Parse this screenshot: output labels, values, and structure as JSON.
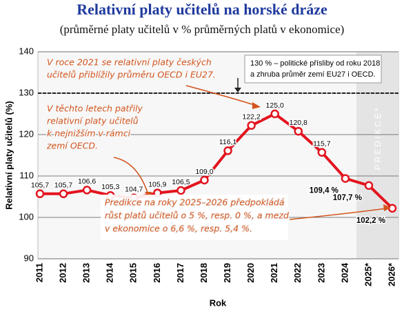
{
  "chart_data": {
    "type": "line",
    "title": "Relativní platy učitelů na horské dráze",
    "subtitle": "(průměrné platy učitelů v % průměrných platů v ekonomice)",
    "x_label": "Rok",
    "y_label": "Relativní platy učitelů (%)",
    "categories": [
      "2011",
      "2012",
      "2013",
      "2014",
      "2015",
      "2016",
      "2017",
      "2018",
      "2019",
      "2020",
      "2021",
      "2022",
      "2023",
      "2024",
      "2025*",
      "2026*"
    ],
    "values": [
      105.7,
      105.7,
      106.6,
      105.3,
      104.7,
      105.9,
      106.5,
      109.0,
      116.1,
      122.2,
      125.0,
      120.8,
      115.7,
      109.4,
      107.7,
      102.2
    ],
    "value_labels": [
      "105,7",
      "105,7",
      "106,6",
      "105,3",
      "104,7",
      "105,9",
      "106,5",
      "109,0",
      "116,1",
      "122,2",
      "125,0",
      "120,8",
      "115,7",
      "109,4 %",
      "107,7 %",
      "102,2 %"
    ],
    "color": "#e3141e",
    "ylim": [
      90,
      140
    ],
    "yticks": [
      90,
      100,
      110,
      120,
      130,
      140
    ],
    "grid": true,
    "reference_line": {
      "value": 130,
      "lines": [
        "130 % – politické přísliby od roku 2018",
        "a zhruba průměr zemí EU27 i OECD."
      ]
    },
    "prediction_label": "PREDIKCE*",
    "annotations": [
      {
        "lines": [
          "V roce 2021 se relativní platy českých",
          "učitelů přiblížily průměru OECD i EU27."
        ]
      },
      {
        "lines": [
          "V těchto letech patřily",
          "relativní platy učitelů",
          "k nejnižším v rámci",
          "zemí OECD."
        ]
      },
      {
        "lines": [
          "Predikce na roky 2025–2026 předpokládá",
          "růst platů učitelů o 5 %, resp. 0 %, a mezd",
          "v ekonomice o 6,6 %, resp. 5,4 %."
        ]
      }
    ]
  }
}
